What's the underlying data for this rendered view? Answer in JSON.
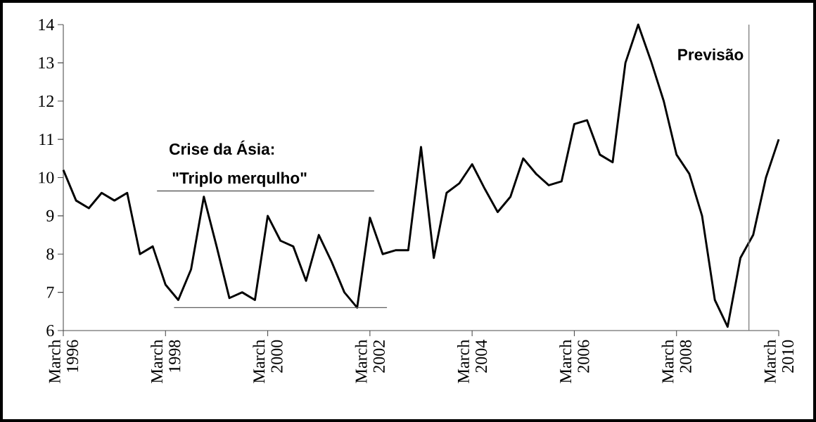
{
  "chart_data": {
    "type": "line",
    "x": [
      "1996-03",
      "1996-06",
      "1996-09",
      "1996-12",
      "1997-03",
      "1997-06",
      "1997-09",
      "1997-12",
      "1998-03",
      "1998-06",
      "1998-09",
      "1998-12",
      "1999-03",
      "1999-06",
      "1999-09",
      "1999-12",
      "2000-03",
      "2000-06",
      "2000-09",
      "2000-12",
      "2001-03",
      "2001-06",
      "2001-09",
      "2001-12",
      "2002-03",
      "2002-06",
      "2002-09",
      "2002-12",
      "2003-03",
      "2003-06",
      "2003-09",
      "2003-12",
      "2004-03",
      "2004-06",
      "2004-09",
      "2004-12",
      "2005-03",
      "2005-06",
      "2005-09",
      "2005-12",
      "2006-03",
      "2006-06",
      "2006-09",
      "2006-12",
      "2007-03",
      "2007-06",
      "2007-09",
      "2007-12",
      "2008-03",
      "2008-06",
      "2008-09",
      "2008-12",
      "2009-03",
      "2009-06",
      "2009-09",
      "2009-12",
      "2010-03"
    ],
    "series": [
      {
        "color": "#000000",
        "values": [
          10.2,
          9.4,
          9.2,
          9.6,
          9.4,
          9.6,
          8.0,
          8.2,
          7.2,
          6.8,
          7.6,
          9.5,
          8.2,
          6.85,
          7.0,
          6.8,
          9.0,
          8.35,
          8.2,
          7.3,
          8.5,
          7.8,
          7.0,
          6.6,
          8.95,
          8.0,
          8.1,
          8.1,
          10.8,
          7.9,
          9.6,
          9.85,
          10.35,
          9.7,
          9.1,
          9.5,
          10.5,
          10.1,
          9.8,
          9.9,
          11.4,
          11.5,
          10.6,
          10.4,
          13.0,
          14.0,
          13.05,
          12.0,
          10.6,
          10.1,
          9.0,
          6.8,
          6.1,
          7.9,
          8.5,
          10.0,
          11.0
        ]
      },
      {
        "type": "line",
        "color": "#606060",
        "x": [
          "1998-01",
          "2002-04"
        ],
        "values": [
          9.65,
          9.65
        ]
      },
      {
        "type": "line",
        "color": "#606060",
        "x": [
          "1998-05",
          "2002-07"
        ],
        "values": [
          6.6,
          6.6
        ]
      }
    ],
    "xlim": [
      "1996-03",
      "2010-03"
    ],
    "xticks": [
      {
        "value": "1996-03",
        "label": "March 1996"
      },
      {
        "value": "1998-03",
        "label": "March 1998"
      },
      {
        "value": "2000-03",
        "label": "March 2000"
      },
      {
        "value": "2002-03",
        "label": "March 2002"
      },
      {
        "value": "2004-03",
        "label": "March 2004"
      },
      {
        "value": "2006-03",
        "label": "March 2006"
      },
      {
        "value": "2008-03",
        "label": "March 2008"
      },
      {
        "value": "2010-03",
        "label": "March 2010"
      }
    ],
    "ylim": [
      6,
      14
    ],
    "yticks": [
      6,
      7,
      8,
      9,
      10,
      11,
      12,
      13,
      14
    ],
    "ref_lines": [
      {
        "axis": "x",
        "value": "2009-08",
        "label": "Previsão",
        "color": "#808080"
      }
    ],
    "annotations": [
      "Crise da Ásia:",
      "\"Triplo merqulho\""
    ],
    "marker": "none"
  }
}
